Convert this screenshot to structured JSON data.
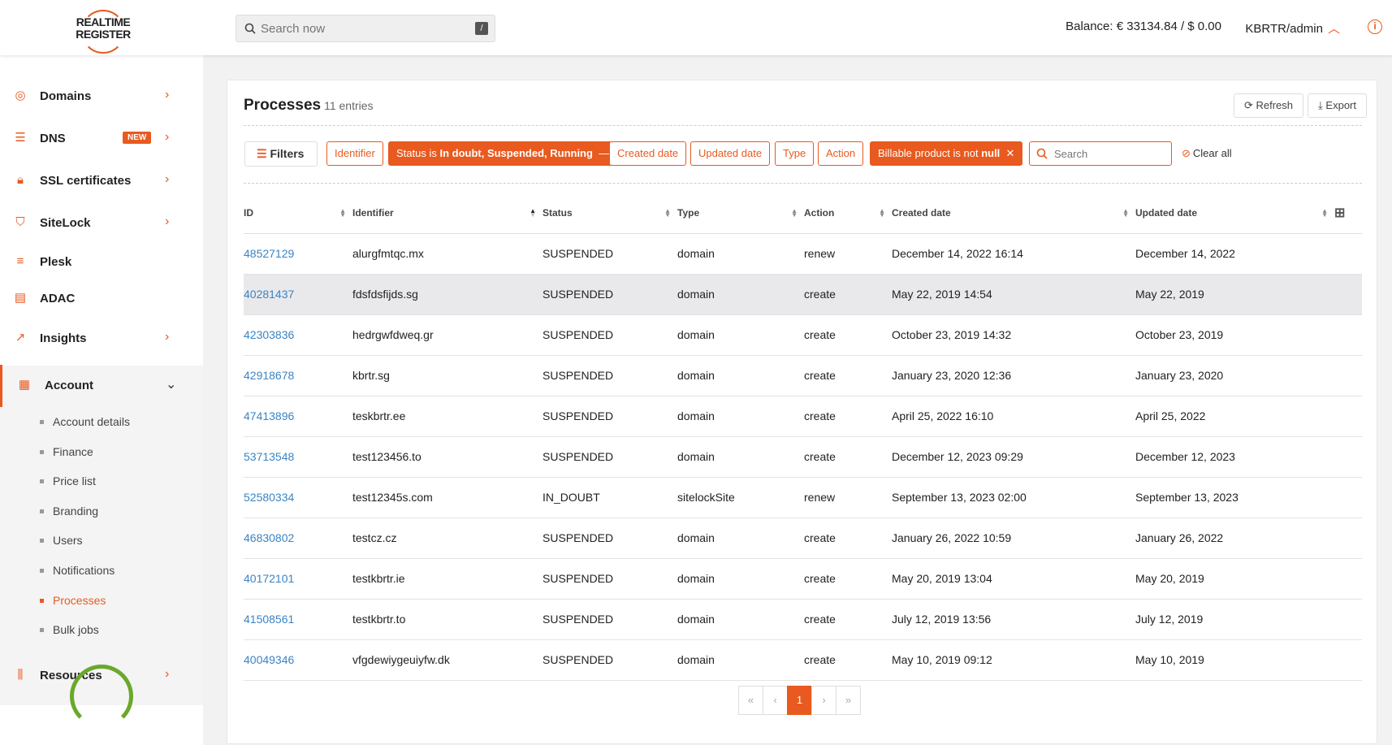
{
  "header": {
    "logo_line1": "REALTIME",
    "logo_line2": "REGISTER",
    "search_placeholder": "Search now",
    "search_shortcut": "/",
    "balance": "Balance: € 33134.84 / $ 0.00",
    "user": "KBRTR/admin"
  },
  "sidebar": {
    "items": [
      {
        "label": "Domains",
        "icon": "globe-icon"
      },
      {
        "label": "DNS",
        "icon": "server-icon",
        "badge": "NEW"
      },
      {
        "label": "SSL certificates",
        "icon": "lock-icon"
      },
      {
        "label": "SiteLock",
        "icon": "shield-icon"
      },
      {
        "label": "Plesk",
        "icon": "stack-icon"
      },
      {
        "label": "ADAC",
        "icon": "search-doc-icon"
      },
      {
        "label": "Insights",
        "icon": "trend-icon"
      },
      {
        "label": "Account",
        "icon": "building-icon"
      }
    ],
    "account_sub": [
      "Account details",
      "Finance",
      "Price list",
      "Branding",
      "Users",
      "Notifications",
      "Processes",
      "Bulk jobs"
    ],
    "resources": "Resources"
  },
  "main": {
    "title": "Processes",
    "entries": "11 entries",
    "refresh": "Refresh",
    "export": "Export",
    "filters": "Filters",
    "chips": {
      "identifier": "Identifier",
      "status_prefix": "Status is ",
      "status_values": "In doubt, Suspended, Running",
      "created": "Created date",
      "updated": "Updated date",
      "type": "Type",
      "action": "Action",
      "billable_prefix": "Billable product is not ",
      "billable_value": "null"
    },
    "search_placeholder": "Search",
    "clear_all": "Clear all",
    "columns": [
      "ID",
      "Identifier",
      "Status",
      "Type",
      "Action",
      "Created date",
      "Updated date"
    ],
    "rows": [
      [
        "48527129",
        "alurgfmtqc.mx",
        "SUSPENDED",
        "domain",
        "renew",
        "December 14, 2022 16:14",
        "December 14, 2022"
      ],
      [
        "40281437",
        "fdsfdsfijds.sg",
        "SUSPENDED",
        "domain",
        "create",
        "May 22, 2019 14:54",
        "May 22, 2019"
      ],
      [
        "42303836",
        "hedrgwfdweq.gr",
        "SUSPENDED",
        "domain",
        "create",
        "October 23, 2019 14:32",
        "October 23, 2019"
      ],
      [
        "42918678",
        "kbrtr.sg",
        "SUSPENDED",
        "domain",
        "create",
        "January 23, 2020 12:36",
        "January 23, 2020"
      ],
      [
        "47413896",
        "teskbrtr.ee",
        "SUSPENDED",
        "domain",
        "create",
        "April 25, 2022 16:10",
        "April 25, 2022"
      ],
      [
        "53713548",
        "test123456.to",
        "SUSPENDED",
        "domain",
        "create",
        "December 12, 2023 09:29",
        "December 12, 2023"
      ],
      [
        "52580334",
        "test12345s.com",
        "IN_DOUBT",
        "sitelockSite",
        "renew",
        "September 13, 2023 02:00",
        "September 13, 2023"
      ],
      [
        "46830802",
        "testcz.cz",
        "SUSPENDED",
        "domain",
        "create",
        "January 26, 2022 10:59",
        "January 26, 2022"
      ],
      [
        "40172101",
        "testkbrtr.ie",
        "SUSPENDED",
        "domain",
        "create",
        "May 20, 2019 13:04",
        "May 20, 2019"
      ],
      [
        "41508561",
        "testkbrtr.to",
        "SUSPENDED",
        "domain",
        "create",
        "July 12, 2019 13:56",
        "July 12, 2019"
      ],
      [
        "40049346",
        "vfgdewiygeuiyfw.dk",
        "SUSPENDED",
        "domain",
        "create",
        "May 10, 2019 09:12",
        "May 10, 2019"
      ]
    ],
    "pager": {
      "first": "«",
      "prev": "‹",
      "current": "1",
      "next": "›",
      "last": "»"
    }
  },
  "colors": {
    "accent": "#e85a1f",
    "link": "#3a84c4"
  }
}
